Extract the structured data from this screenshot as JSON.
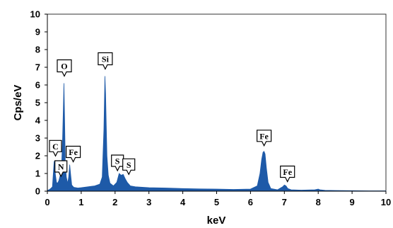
{
  "chart_data": {
    "type": "area",
    "title": "",
    "xlabel": "keV",
    "ylabel": "Cps/eV",
    "xlim": [
      0,
      10
    ],
    "ylim": [
      0,
      10
    ],
    "x_ticks": [
      "0",
      "1",
      "2",
      "3",
      "4",
      "5",
      "6",
      "7",
      "8",
      "9",
      "10"
    ],
    "y_ticks": [
      "0",
      "1",
      "2",
      "3",
      "4",
      "5",
      "6",
      "7",
      "8",
      "9",
      "10"
    ],
    "grid": false,
    "fill_color": "#1e5aa8",
    "series": [
      {
        "x": [
          0.0,
          0.05,
          0.1,
          0.15,
          0.2,
          0.24,
          0.27,
          0.3,
          0.34,
          0.38,
          0.42,
          0.45,
          0.47,
          0.49,
          0.51,
          0.53,
          0.56,
          0.6,
          0.63,
          0.66,
          0.69,
          0.72,
          0.78,
          0.9,
          1.0,
          1.2,
          1.4,
          1.55,
          1.62,
          1.67,
          1.7,
          1.72,
          1.74,
          1.76,
          1.8,
          1.85,
          1.95,
          2.05,
          2.12,
          2.18,
          2.24,
          2.3,
          2.36,
          2.45,
          2.6,
          3.0,
          3.5,
          4.0,
          4.5,
          5.0,
          5.5,
          6.0,
          6.2,
          6.28,
          6.33,
          6.37,
          6.4,
          6.43,
          6.47,
          6.52,
          6.6,
          6.8,
          6.95,
          7.0,
          7.05,
          7.1,
          7.2,
          7.5,
          7.9,
          8.0,
          8.05,
          8.2,
          8.5,
          9.0,
          9.5,
          10.0
        ],
        "y": [
          0.05,
          0.08,
          0.15,
          0.25,
          1.7,
          0.9,
          0.5,
          0.45,
          0.6,
          0.9,
          1.4,
          3.0,
          4.5,
          6.1,
          4.0,
          1.6,
          0.8,
          0.45,
          0.8,
          1.5,
          0.9,
          0.35,
          0.22,
          0.18,
          0.2,
          0.25,
          0.3,
          0.4,
          0.8,
          3.5,
          6.5,
          5.5,
          3.7,
          2.0,
          0.9,
          0.45,
          0.3,
          0.5,
          1.0,
          0.9,
          0.95,
          0.7,
          0.5,
          0.3,
          0.25,
          0.2,
          0.18,
          0.15,
          0.13,
          0.12,
          0.1,
          0.12,
          0.3,
          1.0,
          1.8,
          2.2,
          2.25,
          2.1,
          1.3,
          0.5,
          0.15,
          0.08,
          0.25,
          0.35,
          0.3,
          0.15,
          0.08,
          0.06,
          0.08,
          0.12,
          0.08,
          0.05,
          0.04,
          0.03,
          0.02,
          0.02
        ]
      }
    ],
    "annotations": [
      {
        "label": "O",
        "x": 0.5,
        "y": 6.1
      },
      {
        "label": "Si",
        "x": 1.71,
        "y": 6.5
      },
      {
        "label": "C",
        "x": 0.24,
        "y": 1.75
      },
      {
        "label": "N",
        "x": 0.4,
        "y": 1.0
      },
      {
        "label": "Fe",
        "x": 0.68,
        "y": 1.5
      },
      {
        "label": "S",
        "x": 2.07,
        "y": 1.0
      },
      {
        "label": "S",
        "x": 2.28,
        "y": 0.95
      },
      {
        "label": "Fe",
        "x": 6.4,
        "y": 2.25
      },
      {
        "label": "Fe",
        "x": 7.05,
        "y": 0.38
      }
    ]
  }
}
